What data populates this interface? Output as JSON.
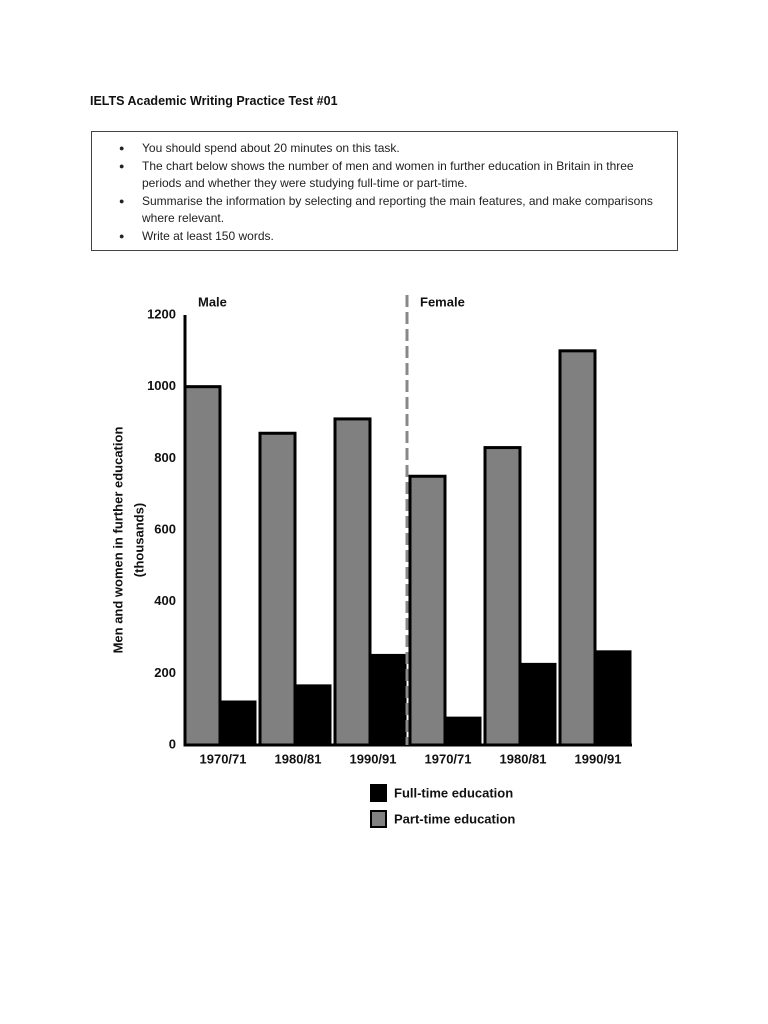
{
  "header": {
    "title": "IELTS Academic Writing Practice Test #01"
  },
  "instructions": [
    "You should spend about 20 minutes on this task.",
    "The chart below shows the number of men and women in further education in Britain in three periods and whether they were studying full-time or part-time.",
    "Summarise the information by selecting and reporting the main features, and make comparisons where relevant.",
    "Write at least 150 words."
  ],
  "chart_data": {
    "type": "bar",
    "groups": [
      "Male",
      "Female"
    ],
    "categories": [
      "1970/71",
      "1980/81",
      "1990/91",
      "1970/71",
      "1980/81",
      "1990/91"
    ],
    "series": [
      {
        "name": "Full-time education",
        "color": "#000000",
        "values": [
          120,
          165,
          250,
          75,
          225,
          260
        ]
      },
      {
        "name": "Part-time education",
        "color": "#808080",
        "values": [
          1000,
          870,
          910,
          750,
          830,
          1100
        ]
      }
    ],
    "ylabel": [
      "Men and women in further education",
      "(thousands)"
    ],
    "ylim": [
      0,
      1200
    ],
    "yticks": [
      0,
      200,
      400,
      600,
      800,
      1000,
      1200
    ]
  }
}
